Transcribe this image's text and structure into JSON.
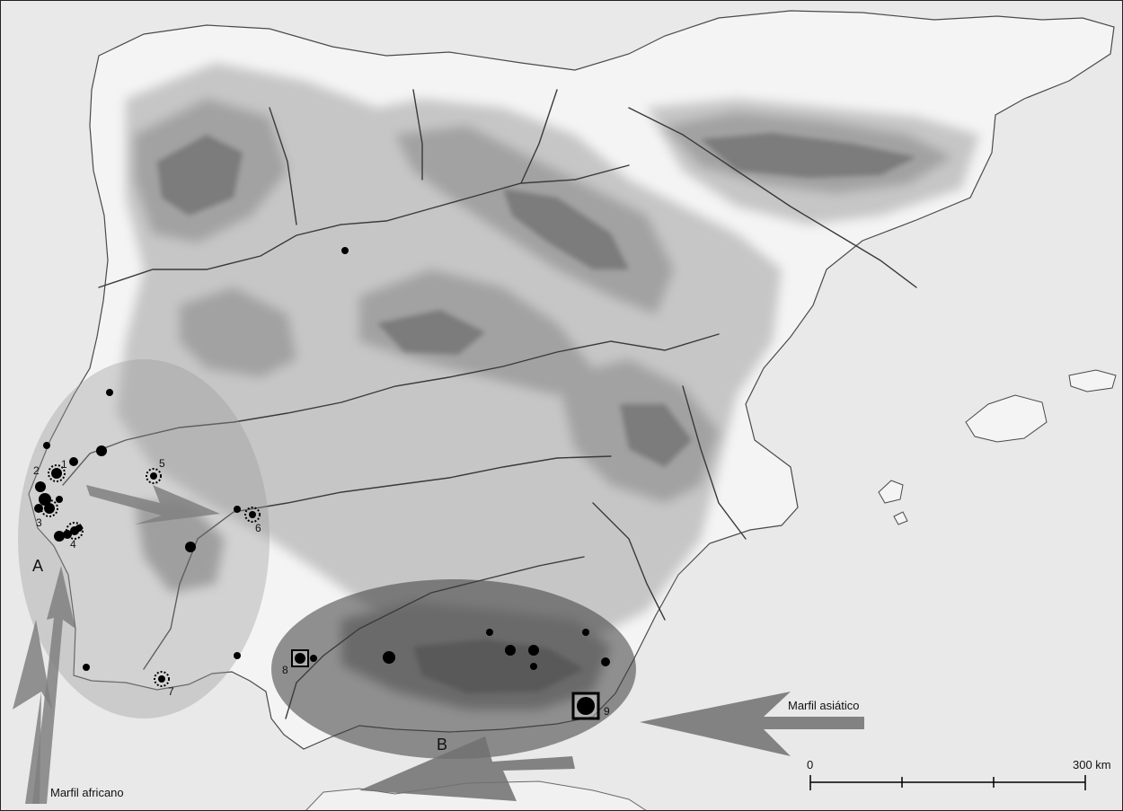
{
  "map": {
    "zone_labels": {
      "a": "A",
      "b": "B"
    },
    "arrows": {
      "african": "Marfil africano",
      "asian": "Marfil asiático"
    },
    "site_numbers": [
      "1",
      "2",
      "3",
      "4",
      "5",
      "6",
      "7",
      "8",
      "9"
    ],
    "scale": {
      "start": "0",
      "end": "300 km"
    },
    "colors": {
      "sea": "#e9e9e9",
      "land": "#f4f4f4",
      "relief_low": "#c6c6c6",
      "relief_mid": "#a2a2a2",
      "relief_high": "#7c7c7c",
      "river": "#3a3a3a",
      "zone_a": "#9a9a9a",
      "zone_b": "#3c3c3c",
      "arrow": "#808080",
      "site": "#000000"
    }
  }
}
